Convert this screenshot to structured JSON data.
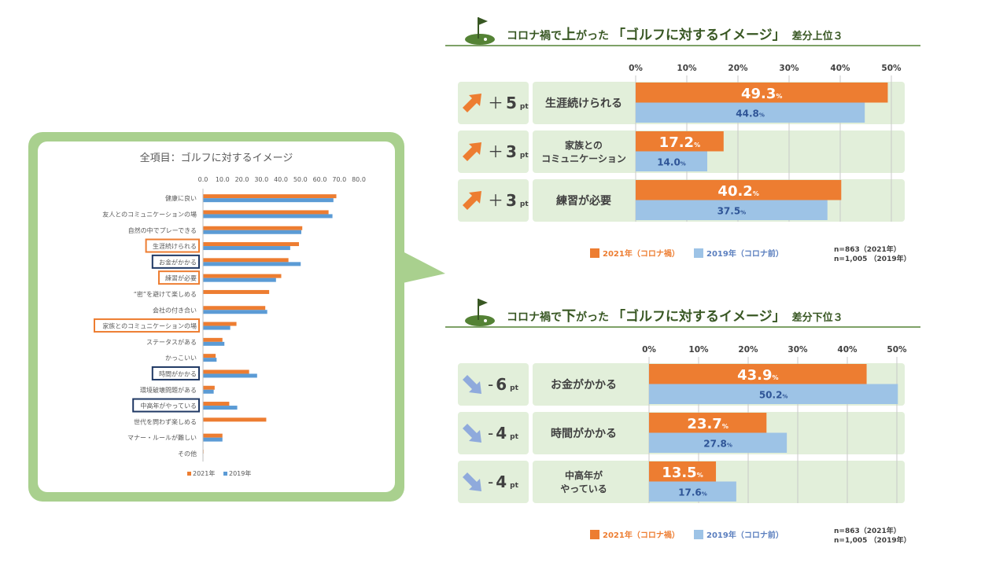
{
  "overview": {
    "title": "全項目：ゴルフに対するイメージ",
    "chart_data": {
      "type": "bar",
      "orientation": "horizontal",
      "title": "全項目：ゴルフに対するイメージ",
      "x_ticks": [
        "0.0",
        "10.0",
        "20.0",
        "30.0",
        "40.0",
        "50.0",
        "60.0",
        "70.0",
        "80.0"
      ],
      "xlim": [
        0,
        80
      ],
      "categories": [
        "健康に良い",
        "友人とのコミュニケーションの場",
        "自然の中でプレーできる",
        "生涯続けられる",
        "お金がかかる",
        "練習が必要",
        "“密”を避けて楽しめる",
        "会社の付き合い",
        "家族とのコミュニケーションの場",
        "ステータスがある",
        "かっこいい",
        "時間がかかる",
        "環境破壊問題がある",
        "中高年がやっている",
        "世代を問わず楽しめる",
        "マナー・ルールが難しい",
        "その他"
      ],
      "series": [
        {
          "name": "2021年",
          "color": "#ed7d31",
          "values": [
            68.5,
            64.5,
            51.0,
            49.3,
            43.9,
            40.2,
            34.0,
            32.0,
            17.2,
            10.0,
            6.5,
            23.7,
            6.0,
            13.5,
            32.5,
            10.0,
            0.3
          ]
        },
        {
          "name": "2019年",
          "color": "#5b9bd5",
          "values": [
            67.0,
            66.5,
            50.5,
            44.8,
            50.2,
            37.5,
            0,
            33.0,
            14.0,
            11.0,
            7.0,
            27.8,
            5.5,
            17.6,
            0,
            10.0,
            0.2
          ]
        }
      ],
      "highlight_orange": [
        3,
        5,
        8
      ],
      "highlight_navy": [
        4,
        11,
        13
      ],
      "legend_position": "bottom"
    }
  },
  "top_section": {
    "title_parts": [
      "コロナ禍で",
      "上",
      "がった",
      "「ゴルフに対するイメージ」",
      "差分上位３"
    ],
    "axis_ticks": [
      "0%",
      "10%",
      "20%",
      "30%",
      "40%",
      "50%"
    ],
    "rows": [
      {
        "diff_sign": "＋",
        "diff_num": "5",
        "diff_unit": "pt",
        "label": "生涯続けられる",
        "v2021": 49.3,
        "v2019": 44.8,
        "l2021": "49.3",
        "l2019": "44.8"
      },
      {
        "diff_sign": "＋",
        "diff_num": "3",
        "diff_unit": "pt",
        "label": "家族との\nコミュニケーション",
        "v2021": 17.2,
        "v2019": 14.0,
        "l2021": "17.2",
        "l2019": "14.0"
      },
      {
        "diff_sign": "＋",
        "diff_num": "3",
        "diff_unit": "pt",
        "label": "練習が必要",
        "v2021": 40.2,
        "v2019": 37.5,
        "l2021": "40.2",
        "l2019": "37.5"
      }
    ],
    "legend": {
      "a": "2021年（コロナ禍）",
      "b": "2019年（コロナ前）"
    },
    "n1": "n=863（2021年）",
    "n2": "n=1,005 （2019年）"
  },
  "bottom_section": {
    "title_parts": [
      "コロナ禍で",
      "下",
      "がった",
      "「ゴルフに対するイメージ」",
      "差分下位３"
    ],
    "axis_ticks": [
      "0%",
      "10%",
      "20%",
      "30%",
      "40%",
      "50%"
    ],
    "rows": [
      {
        "diff_sign": "-",
        "diff_num": "6",
        "diff_unit": "pt",
        "label": "お金がかかる",
        "v2021": 43.9,
        "v2019": 50.2,
        "l2021": "43.9",
        "l2019": "50.2"
      },
      {
        "diff_sign": "-",
        "diff_num": "4",
        "diff_unit": "pt",
        "label": "時間がかかる",
        "v2021": 23.7,
        "v2019": 27.8,
        "l2021": "23.7",
        "l2019": "27.8"
      },
      {
        "diff_sign": "-",
        "diff_num": "4",
        "diff_unit": "pt",
        "label": "中高年が\nやっている",
        "v2021": 13.5,
        "v2019": 17.6,
        "l2021": "13.5",
        "l2019": "17.6"
      }
    ],
    "legend": {
      "a": "2021年（コロナ禍）",
      "b": "2019年（コロナ前）"
    },
    "n1": "n=863（2021年）",
    "n2": "n=1,005 （2019年）"
  },
  "percent_sign": "%",
  "colors": {
    "orange": "#ed7d31",
    "blue_overview": "#5b9bd5",
    "blue_light": "#9dc3e6",
    "green_bg": "#a9d08e",
    "row_bg": "#e2efda",
    "title_green": "#385723",
    "navy": "#1f3864",
    "arrow_up": "#ed7d31",
    "arrow_down": "#8faadc"
  },
  "icons": {
    "section_icon": "golf-flag-icon",
    "up_arrow": "arrow-up-right-icon",
    "down_arrow": "arrow-down-right-icon"
  }
}
